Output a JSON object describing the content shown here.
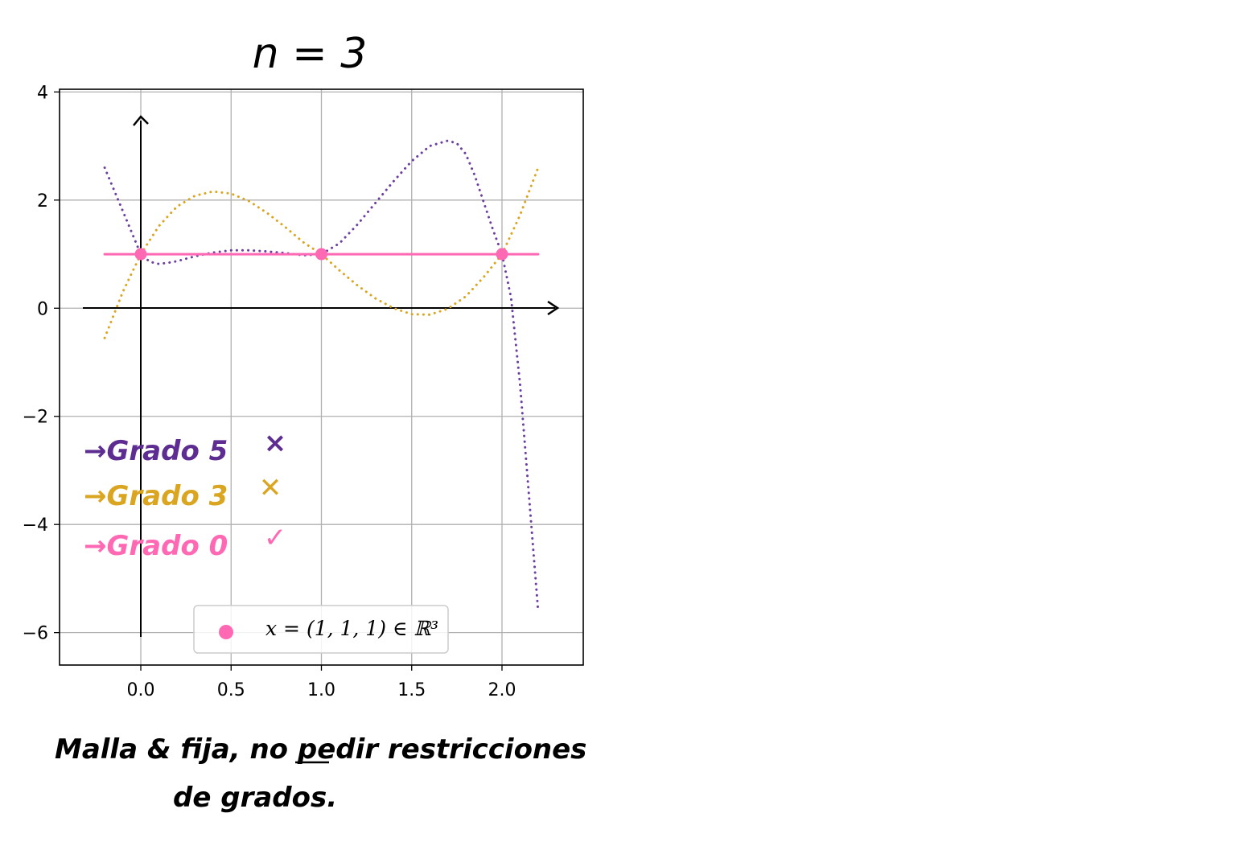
{
  "chart_data": {
    "type": "line",
    "title": "n = 3",
    "xlabel": "",
    "ylabel": "",
    "xlim": [
      -0.45,
      2.45
    ],
    "ylim": [
      -6.6,
      4.05
    ],
    "xticks": [
      0.0,
      0.5,
      1.0,
      1.5,
      2.0
    ],
    "xtick_labels": [
      "0.0",
      "0.5",
      "1.0",
      "1.5",
      "2.0"
    ],
    "yticks": [
      4,
      2,
      0,
      -2,
      -4,
      -6
    ],
    "ytick_labels": [
      "4",
      "2",
      "0",
      "−2",
      "−4",
      "−6"
    ],
    "grid": true,
    "legend": {
      "placement": "bottom-center",
      "label": "x = (1, 1, 1) ∈ ℝ³"
    },
    "points": {
      "x": [
        0.0,
        1.0,
        2.0
      ],
      "y": [
        1,
        1,
        1
      ],
      "color": "#ff69b4"
    },
    "series": [
      {
        "color": "#6a3fa0",
        "style": "dotted",
        "x": [
          -0.2,
          -0.1,
          0.0,
          0.05,
          0.1,
          0.15,
          0.2,
          0.3,
          0.4,
          0.5,
          0.6,
          0.7,
          0.8,
          0.9,
          1.0,
          1.1,
          1.2,
          1.3,
          1.4,
          1.5,
          1.6,
          1.7,
          1.75,
          1.8,
          1.85,
          1.9,
          1.95,
          2.0,
          2.05,
          2.1,
          2.15,
          2.2
        ],
        "y": [
          2.6,
          1.8,
          1.0,
          0.86,
          0.82,
          0.84,
          0.87,
          0.96,
          1.03,
          1.07,
          1.07,
          1.05,
          1.02,
          0.98,
          1.0,
          1.2,
          1.55,
          1.95,
          2.35,
          2.72,
          3.0,
          3.1,
          3.05,
          2.85,
          2.45,
          1.95,
          1.45,
          1.0,
          0.2,
          -1.4,
          -3.5,
          -5.6
        ]
      },
      {
        "color": "#daa520",
        "style": "dotted",
        "x": [
          -0.2,
          -0.1,
          0.0,
          0.1,
          0.2,
          0.3,
          0.4,
          0.5,
          0.6,
          0.7,
          0.8,
          0.9,
          1.0,
          1.1,
          1.2,
          1.3,
          1.4,
          1.5,
          1.6,
          1.7,
          1.8,
          1.9,
          2.0,
          2.1,
          2.2
        ],
        "y": [
          -0.55,
          0.3,
          1.0,
          1.52,
          1.88,
          2.08,
          2.16,
          2.12,
          1.98,
          1.76,
          1.5,
          1.22,
          1.0,
          0.7,
          0.42,
          0.18,
          0.0,
          -0.11,
          -0.12,
          -0.01,
          0.22,
          0.58,
          1.0,
          1.72,
          2.6
        ]
      },
      {
        "color": "#ff69b4",
        "style": "solid",
        "x": [
          -0.2,
          2.2
        ],
        "y": [
          1,
          1
        ]
      }
    ],
    "annotations": [
      {
        "text": "→Grado 5",
        "mark": "×",
        "color": "#5e2d91"
      },
      {
        "text": "→Grado 3",
        "mark": "✕",
        "color": "#daa520"
      },
      {
        "text": "→Grado 0",
        "mark": "✓",
        "color": "#ff69b4"
      }
    ],
    "note_lines": [
      "Malla & fija, no pedir restricciones",
      "de grados."
    ]
  }
}
